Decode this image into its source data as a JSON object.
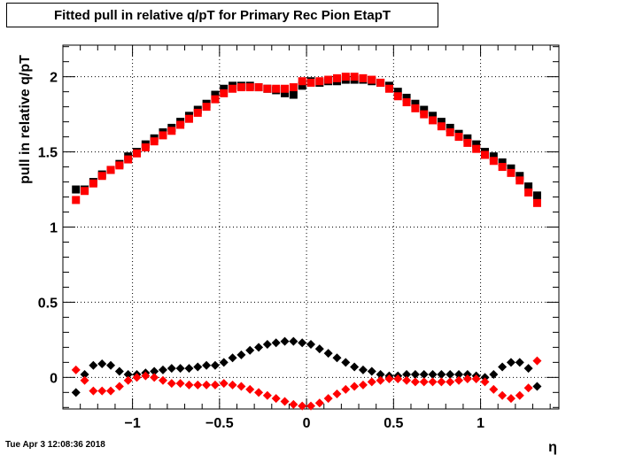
{
  "chart_data": {
    "type": "scatter",
    "title": "Fitted pull in relative q/pT for Primary Rec Pion EtapT",
    "xlabel": "η",
    "ylabel": "pull in relative q/pT",
    "xlim": [
      -1.4,
      1.45
    ],
    "ylim": [
      -0.21,
      2.21
    ],
    "grid": true,
    "x_ticks": [
      -1,
      -0.5,
      0,
      0.5,
      1
    ],
    "x_tick_labels": [
      "−1",
      "−0.5",
      "0",
      "0.5",
      "1"
    ],
    "y_ticks": [
      0,
      0.5,
      1,
      1.5,
      2
    ],
    "y_tick_labels": [
      "0",
      "0.5",
      "1",
      "1.5",
      "2"
    ],
    "x": [
      -1.325,
      -1.275,
      -1.225,
      -1.175,
      -1.125,
      -1.075,
      -1.025,
      -0.975,
      -0.925,
      -0.875,
      -0.825,
      -0.775,
      -0.725,
      -0.675,
      -0.625,
      -0.575,
      -0.525,
      -0.475,
      -0.425,
      -0.375,
      -0.325,
      -0.275,
      -0.225,
      -0.175,
      -0.125,
      -0.075,
      -0.025,
      0.025,
      0.075,
      0.125,
      0.175,
      0.225,
      0.275,
      0.325,
      0.375,
      0.425,
      0.475,
      0.525,
      0.575,
      0.625,
      0.675,
      0.725,
      0.775,
      0.825,
      0.875,
      0.925,
      0.975,
      1.025,
      1.075,
      1.125,
      1.175,
      1.225,
      1.275,
      1.325
    ],
    "series": [
      {
        "color": "#000000",
        "marker": "square",
        "values": [
          1.25,
          1.25,
          1.3,
          1.35,
          1.38,
          1.42,
          1.47,
          1.5,
          1.55,
          1.59,
          1.63,
          1.66,
          1.7,
          1.74,
          1.78,
          1.82,
          1.88,
          1.92,
          1.94,
          1.94,
          1.94,
          1.93,
          1.92,
          1.91,
          1.89,
          1.88,
          1.94,
          1.97,
          1.96,
          1.97,
          1.97,
          1.98,
          1.98,
          1.98,
          1.97,
          1.96,
          1.94,
          1.9,
          1.86,
          1.82,
          1.78,
          1.74,
          1.7,
          1.66,
          1.62,
          1.59,
          1.55,
          1.5,
          1.47,
          1.43,
          1.39,
          1.34,
          1.27,
          1.21
        ]
      },
      {
        "color": "#ff0000",
        "marker": "square",
        "values": [
          1.18,
          1.24,
          1.29,
          1.34,
          1.38,
          1.41,
          1.45,
          1.49,
          1.53,
          1.57,
          1.61,
          1.64,
          1.68,
          1.72,
          1.76,
          1.8,
          1.85,
          1.89,
          1.92,
          1.93,
          1.93,
          1.93,
          1.92,
          1.92,
          1.92,
          1.93,
          1.97,
          1.96,
          1.97,
          1.98,
          1.99,
          2.0,
          2.0,
          1.99,
          1.98,
          1.96,
          1.92,
          1.87,
          1.83,
          1.79,
          1.75,
          1.71,
          1.67,
          1.63,
          1.6,
          1.56,
          1.52,
          1.48,
          1.44,
          1.4,
          1.36,
          1.31,
          1.23,
          1.16
        ]
      },
      {
        "color": "#000000",
        "marker": "diamond",
        "values": [
          -0.1,
          0.02,
          0.08,
          0.09,
          0.08,
          0.04,
          0.02,
          0.02,
          0.03,
          0.04,
          0.05,
          0.06,
          0.06,
          0.06,
          0.07,
          0.08,
          0.08,
          0.1,
          0.13,
          0.15,
          0.18,
          0.2,
          0.22,
          0.23,
          0.24,
          0.24,
          0.23,
          0.22,
          0.19,
          0.16,
          0.13,
          0.1,
          0.07,
          0.05,
          0.04,
          0.02,
          0.01,
          0.01,
          0.02,
          0.02,
          0.02,
          0.02,
          0.02,
          0.02,
          0.02,
          0.02,
          0.01,
          0.0,
          0.02,
          0.07,
          0.1,
          0.1,
          0.06,
          -0.06
        ]
      },
      {
        "color": "#ff0000",
        "marker": "diamond",
        "values": [
          0.05,
          -0.02,
          -0.09,
          -0.09,
          -0.09,
          -0.06,
          -0.02,
          0.0,
          0.01,
          0.0,
          -0.02,
          -0.04,
          -0.04,
          -0.05,
          -0.05,
          -0.05,
          -0.05,
          -0.04,
          -0.05,
          -0.06,
          -0.08,
          -0.1,
          -0.12,
          -0.14,
          -0.16,
          -0.18,
          -0.19,
          -0.19,
          -0.17,
          -0.14,
          -0.11,
          -0.08,
          -0.06,
          -0.05,
          -0.03,
          -0.02,
          -0.01,
          -0.01,
          -0.02,
          -0.03,
          -0.03,
          -0.03,
          -0.03,
          -0.03,
          -0.02,
          -0.01,
          -0.01,
          -0.03,
          -0.08,
          -0.12,
          -0.14,
          -0.12,
          -0.07,
          0.11
        ]
      }
    ]
  },
  "timestamp": "Tue Apr  3 12:08:36 2018"
}
